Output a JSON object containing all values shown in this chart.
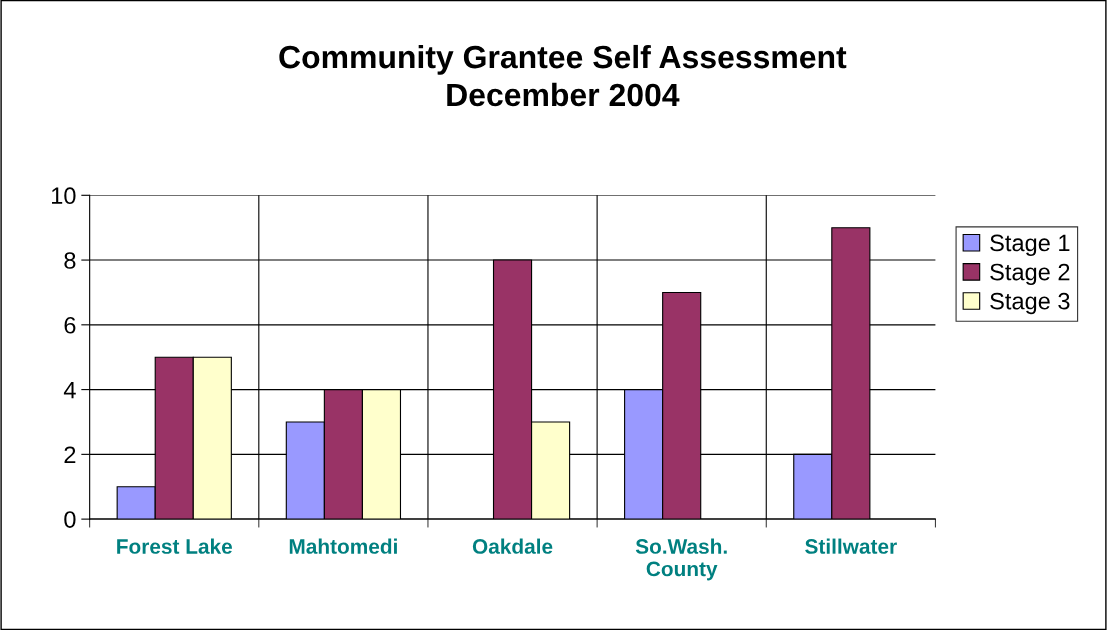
{
  "chart_data": {
    "type": "bar",
    "title": "Community Grantee Self Assessment\nDecember 2004",
    "categories": [
      "Forest Lake",
      "Mahtomedi",
      "Oakdale",
      "So.Wash.\nCounty",
      "Stillwater"
    ],
    "series": [
      {
        "name": "Stage 1",
        "color": "#9999ff",
        "values": [
          1,
          3,
          null,
          4,
          2
        ]
      },
      {
        "name": "Stage 2",
        "color": "#993366",
        "values": [
          5,
          4,
          8,
          7,
          9
        ]
      },
      {
        "name": "Stage 3",
        "color": "#ffffcc",
        "values": [
          5,
          4,
          3,
          null,
          null
        ]
      }
    ],
    "ylim": [
      0,
      10
    ],
    "yticks": [
      0,
      2,
      4,
      6,
      8,
      10
    ],
    "grid": true,
    "legend": "right"
  }
}
